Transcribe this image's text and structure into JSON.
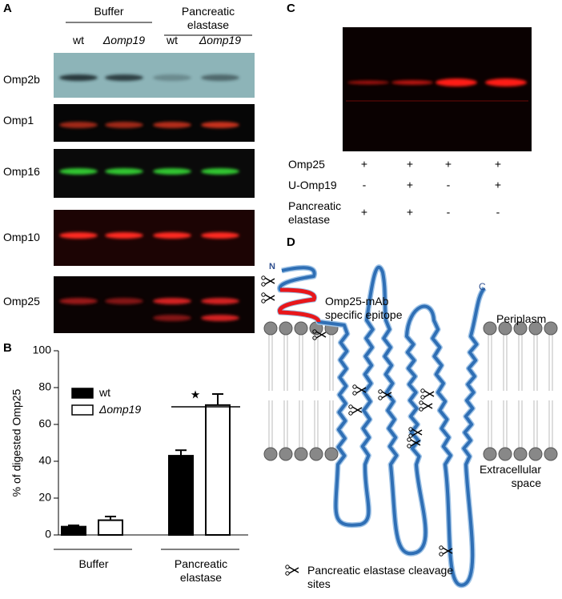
{
  "panel_a": {
    "label": "A",
    "groups": [
      "Buffer",
      "Pancreatic elastase"
    ],
    "lanes": [
      "wt",
      "Δomp19",
      "wt",
      "Δomp19"
    ],
    "rows": [
      "Omp2b",
      "Omp1",
      "Omp16",
      "Omp10",
      "Omp25"
    ]
  },
  "chart_data": {
    "panel_label": "B",
    "type": "bar",
    "y_label": "% of digested Omp25",
    "categories": [
      "Buffer",
      "Pancreatic elastase"
    ],
    "series": [
      {
        "name": "wt",
        "color": "#000000",
        "values": [
          4.5,
          43
        ],
        "errors": [
          0.7,
          3
        ]
      },
      {
        "name": "Δomp19",
        "color": "#ffffff",
        "values": [
          8,
          70.5
        ],
        "errors": [
          2,
          6
        ]
      }
    ],
    "ylim": [
      0,
      100
    ],
    "yticks": [
      0,
      20,
      40,
      60,
      80,
      100
    ],
    "annotation": "★",
    "legend": "upper left"
  },
  "panel_c": {
    "label": "C",
    "rows": [
      {
        "name": "Omp25",
        "marks": [
          "+",
          "+",
          "+",
          "+"
        ]
      },
      {
        "name": "U-Omp19",
        "marks": [
          "-",
          "+",
          "-",
          "+"
        ]
      },
      {
        "name": "Pancreatic elastase",
        "marks": [
          "+",
          "+",
          "-",
          "-"
        ]
      }
    ]
  },
  "panel_d": {
    "label": "D",
    "n_terminus": "N",
    "c_terminus": "C",
    "epitope": "Omp25-mAb specific epitope",
    "periplasm": "Periplasm",
    "extracellular": "Extracellular space",
    "legend": "Pancreatic elastase cleavage sites"
  }
}
